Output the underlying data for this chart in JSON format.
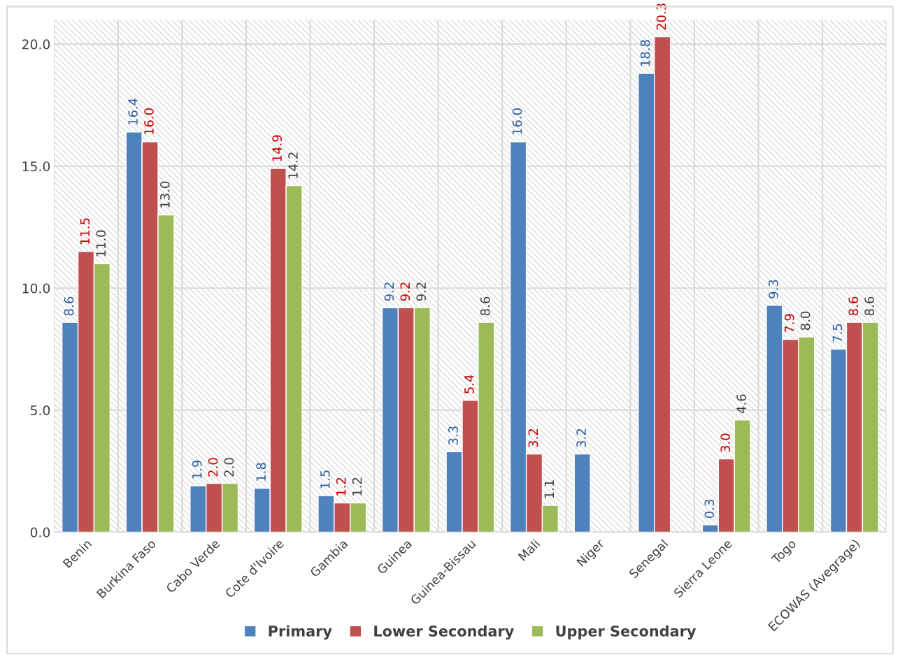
{
  "chart_data": {
    "type": "bar",
    "categories": [
      "Benin",
      "Burkina Faso",
      "Cabo Verde",
      "Cote d'Ivoire",
      "Gambia",
      "Guinea",
      "Guinea-Bissau",
      "Mali",
      "Niger",
      "Senegal",
      "Sierra Leone",
      "Togo",
      "ECOWAS (Avegrage)"
    ],
    "series": [
      {
        "name": "Primary",
        "color": "#4f81bd",
        "values": [
          8.6,
          16.4,
          1.9,
          1.8,
          1.5,
          9.2,
          3.3,
          16.0,
          3.2,
          18.8,
          0.3,
          9.3,
          7.5
        ],
        "value_labels": [
          "8.6",
          "16.4",
          "1.9",
          "1.8",
          "1.5",
          "9.2",
          "3.3",
          "16.0",
          "3.2",
          "18.8",
          "0.3",
          "9.3",
          "7.5"
        ]
      },
      {
        "name": "Lower Secondary",
        "color": "#c0504d",
        "values": [
          11.5,
          16.0,
          2.0,
          14.9,
          1.2,
          9.2,
          5.4,
          3.2,
          null,
          20.3,
          3.0,
          7.9,
          8.6
        ],
        "value_labels": [
          "11.5",
          "16.0",
          "2.0",
          "14.9",
          "1.2",
          "9.2",
          "5.4",
          "3.2",
          null,
          "20.3",
          "3.0",
          "7.9",
          "8.6"
        ]
      },
      {
        "name": "Upper Secondary",
        "color": "#9bbb59",
        "values": [
          11.0,
          13.0,
          2.0,
          14.2,
          1.2,
          9.2,
          8.6,
          1.1,
          null,
          null,
          4.6,
          8.0,
          8.6
        ],
        "value_labels": [
          "11.0",
          "13.0",
          "2.0",
          "14.2",
          "1.2",
          "9.2",
          "8.6",
          "1.1",
          null,
          null,
          "4.6",
          "8.0",
          "8.6"
        ]
      }
    ],
    "ylim": [
      0,
      21
    ],
    "yticks": [
      {
        "value": 0,
        "label": "0.0"
      },
      {
        "value": 5,
        "label": "5.0"
      },
      {
        "value": 10,
        "label": "10.0"
      },
      {
        "value": 15,
        "label": "15.0"
      },
      {
        "value": 20,
        "label": "20.0"
      }
    ],
    "grid": true,
    "legend": "bottom"
  }
}
